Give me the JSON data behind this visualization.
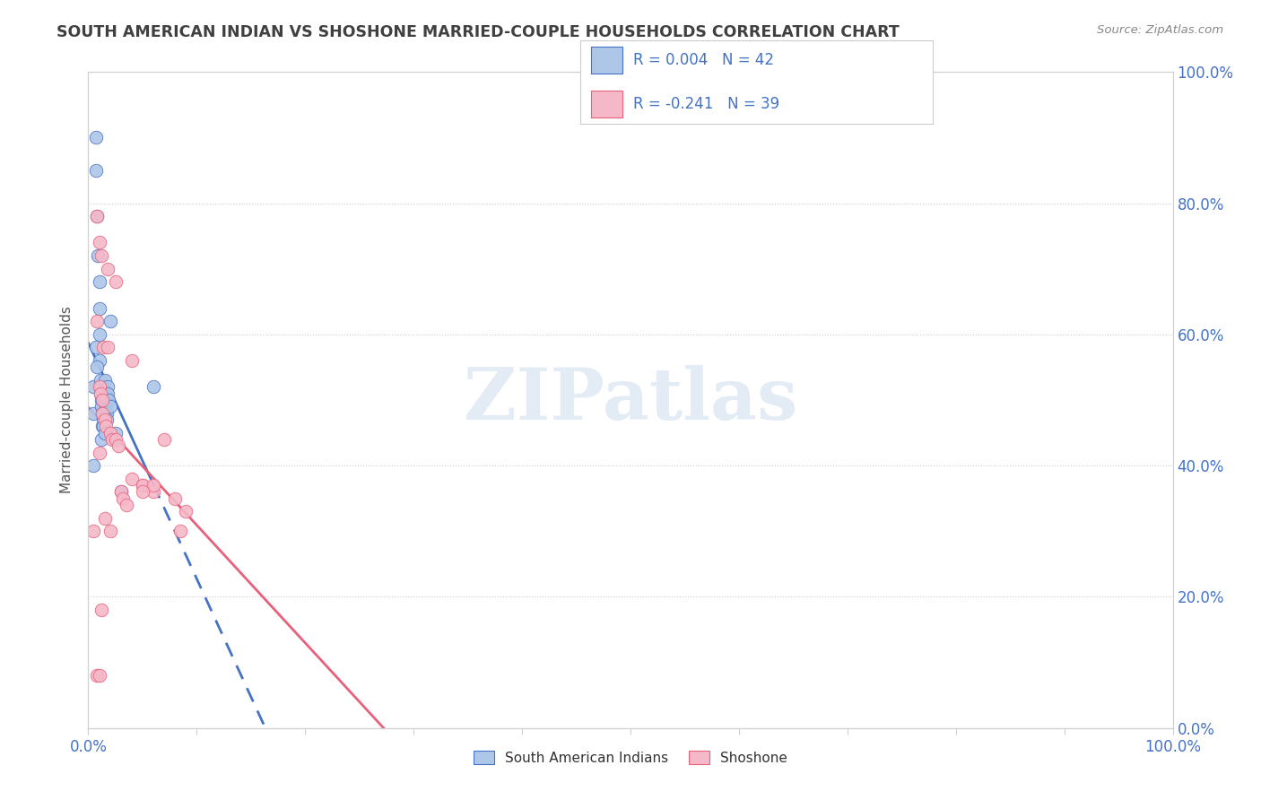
{
  "title": "SOUTH AMERICAN INDIAN VS SHOSHONE MARRIED-COUPLE HOUSEHOLDS CORRELATION CHART",
  "source": "Source: ZipAtlas.com",
  "ylabel": "Married-couple Households",
  "watermark": "ZIPatlas",
  "legend_bottom": [
    "South American Indians",
    "Shoshone"
  ],
  "r_blue": 0.004,
  "n_blue": 42,
  "r_pink": -0.241,
  "n_pink": 39,
  "blue_color": "#aec6e8",
  "pink_color": "#f5b8c8",
  "blue_line_color": "#4472c4",
  "pink_line_color": "#e8607a",
  "blue_scatter": [
    [
      0.5,
      52
    ],
    [
      0.5,
      48
    ],
    [
      0.7,
      90
    ],
    [
      0.7,
      85
    ],
    [
      0.8,
      78
    ],
    [
      0.9,
      72
    ],
    [
      1.0,
      68
    ],
    [
      1.0,
      64
    ],
    [
      1.0,
      60
    ],
    [
      1.0,
      56
    ],
    [
      1.1,
      53
    ],
    [
      1.1,
      51
    ],
    [
      1.2,
      52
    ],
    [
      1.2,
      50
    ],
    [
      1.2,
      49
    ],
    [
      1.3,
      50
    ],
    [
      1.3,
      48
    ],
    [
      1.3,
      46
    ],
    [
      1.4,
      50
    ],
    [
      1.4,
      48
    ],
    [
      1.4,
      47
    ],
    [
      1.5,
      53
    ],
    [
      1.5,
      51
    ],
    [
      1.5,
      50
    ],
    [
      1.6,
      50
    ],
    [
      1.6,
      49
    ],
    [
      1.7,
      48
    ],
    [
      1.7,
      47
    ],
    [
      1.8,
      52
    ],
    [
      1.8,
      51
    ],
    [
      1.9,
      50
    ],
    [
      2.0,
      62
    ],
    [
      2.0,
      49
    ],
    [
      2.5,
      45
    ],
    [
      3.0,
      36
    ],
    [
      6.0,
      52
    ],
    [
      0.5,
      40
    ],
    [
      0.8,
      55
    ],
    [
      1.2,
      44
    ],
    [
      1.4,
      46
    ],
    [
      1.5,
      45
    ],
    [
      0.7,
      58
    ]
  ],
  "pink_scatter": [
    [
      0.8,
      78
    ],
    [
      1.0,
      74
    ],
    [
      1.2,
      72
    ],
    [
      1.8,
      70
    ],
    [
      2.5,
      68
    ],
    [
      0.8,
      62
    ],
    [
      1.4,
      58
    ],
    [
      4.0,
      56
    ],
    [
      1.0,
      52
    ],
    [
      1.1,
      51
    ],
    [
      1.3,
      50
    ],
    [
      1.3,
      48
    ],
    [
      1.5,
      47
    ],
    [
      1.6,
      46
    ],
    [
      1.8,
      58
    ],
    [
      2.0,
      45
    ],
    [
      2.2,
      44
    ],
    [
      2.5,
      44
    ],
    [
      2.8,
      43
    ],
    [
      3.0,
      36
    ],
    [
      3.2,
      35
    ],
    [
      3.5,
      34
    ],
    [
      4.0,
      38
    ],
    [
      5.0,
      37
    ],
    [
      6.0,
      36
    ],
    [
      7.0,
      44
    ],
    [
      8.0,
      35
    ],
    [
      8.5,
      30
    ],
    [
      9.0,
      33
    ],
    [
      1.0,
      42
    ],
    [
      1.5,
      32
    ],
    [
      2.0,
      30
    ],
    [
      5.0,
      37
    ],
    [
      6.0,
      37
    ],
    [
      0.8,
      8
    ],
    [
      1.0,
      8
    ],
    [
      1.2,
      18
    ],
    [
      5.0,
      36
    ],
    [
      0.5,
      30
    ]
  ],
  "background_color": "#ffffff",
  "grid_color": "#cccccc",
  "title_color": "#404040",
  "axis_color": "#4472c4",
  "source_color": "#888888",
  "xlim": [
    0,
    100
  ],
  "ylim": [
    0,
    100
  ],
  "xticks": [
    0,
    10,
    20,
    30,
    40,
    50,
    60,
    70,
    80,
    90,
    100
  ],
  "yticks": [
    0,
    20,
    40,
    60,
    80,
    100
  ]
}
